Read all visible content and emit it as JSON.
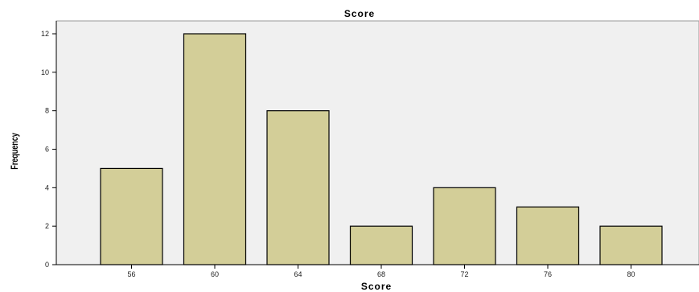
{
  "chart_data": {
    "type": "bar",
    "title": "Score",
    "xlabel": "Score",
    "ylabel": "Frequency",
    "categories": [
      "56",
      "60",
      "64",
      "68",
      "72",
      "76",
      "80"
    ],
    "values": [
      5,
      12,
      8,
      2,
      4,
      3,
      2
    ],
    "ylim": [
      0,
      12.5
    ],
    "yticks": [
      0,
      2,
      4,
      6,
      8,
      10,
      12
    ],
    "grid": false,
    "colors": {
      "plot_background": "#f0f0f0",
      "bar_fill": "#d3ce98",
      "bar_stroke": "#000000"
    }
  }
}
